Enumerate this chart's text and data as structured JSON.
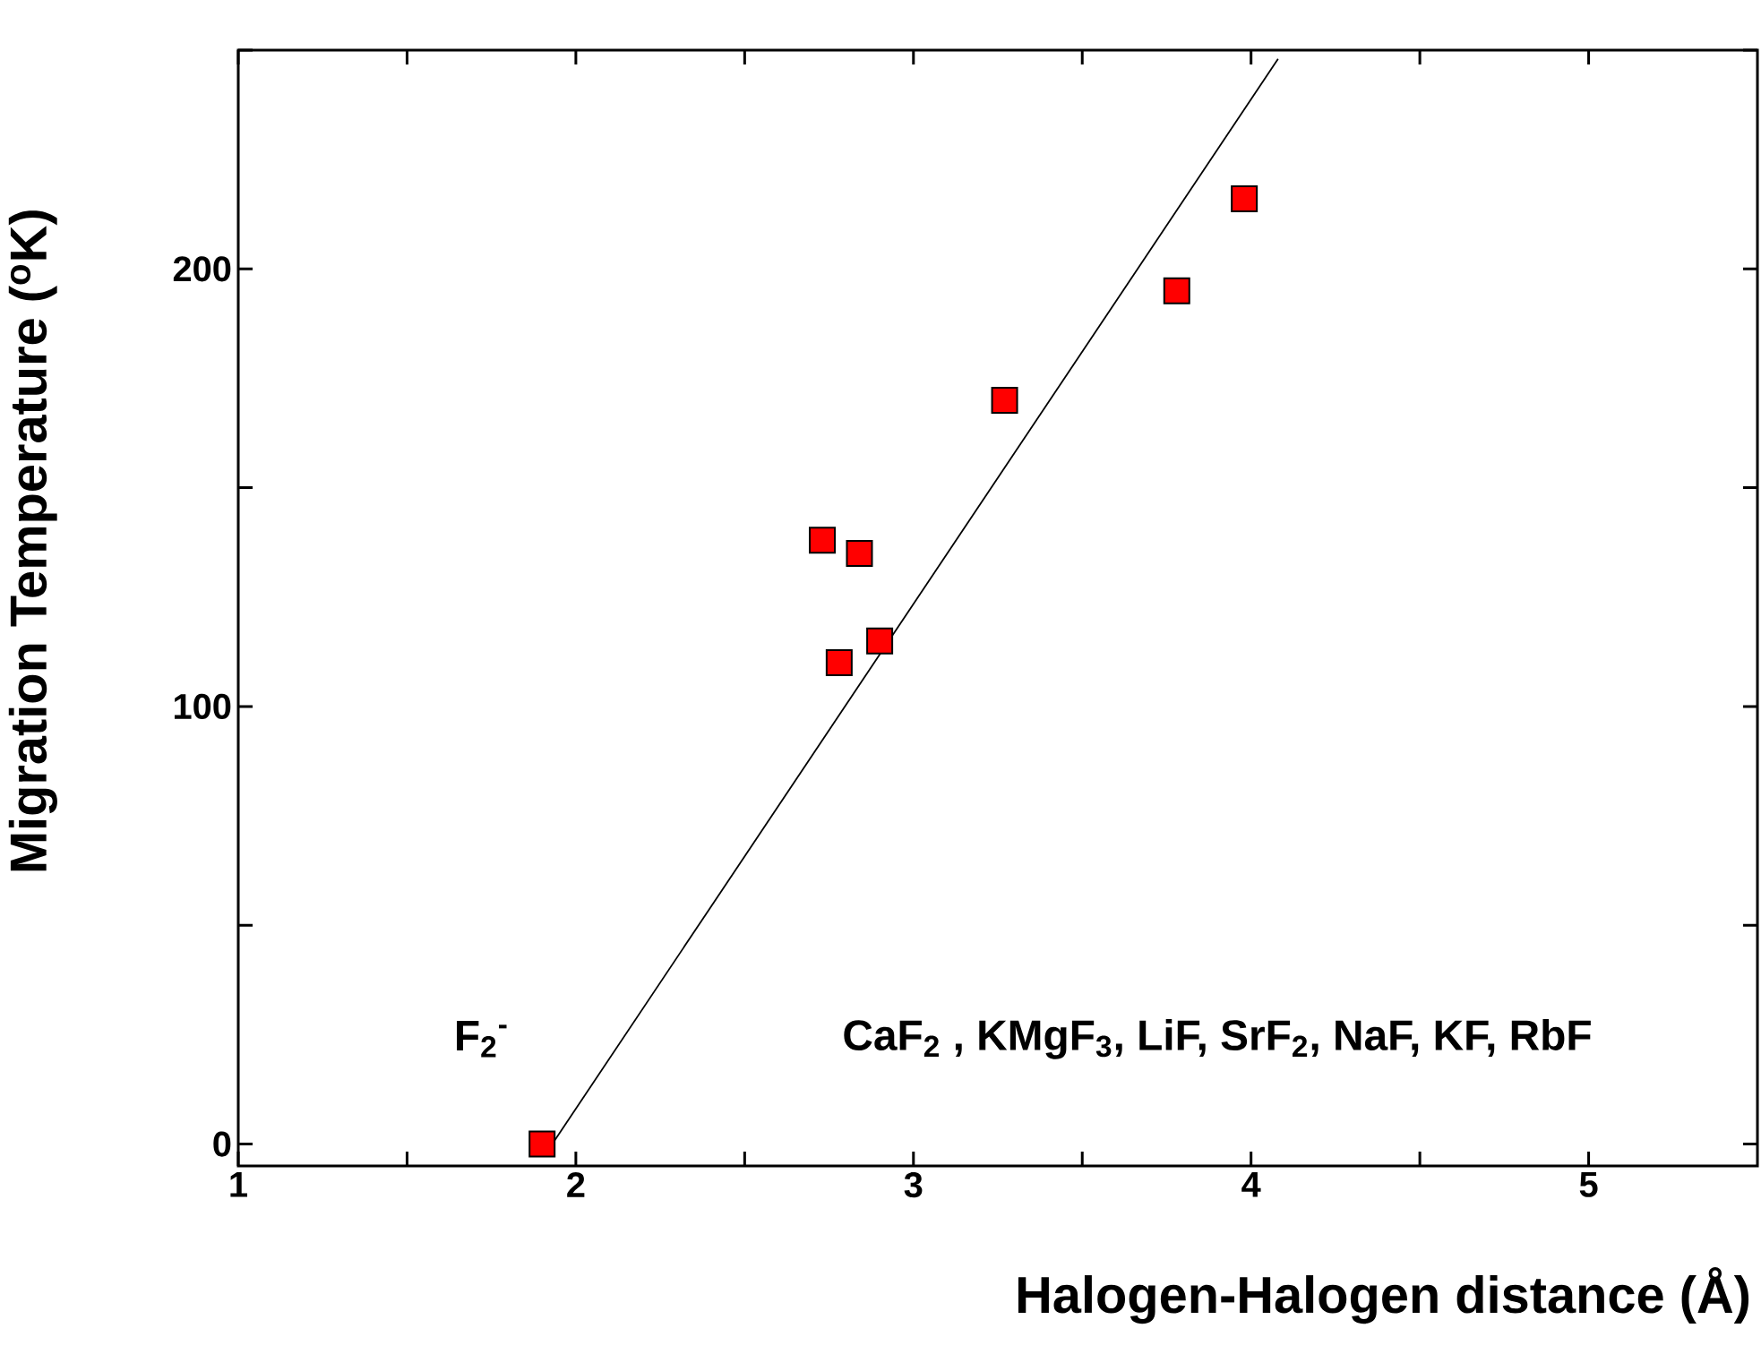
{
  "chart_data": {
    "type": "scatter",
    "xlabel": "Halogen-Halogen distance (Å)",
    "ylabel": "Migration Temperature ($^{o}$K)",
    "xlim": [
      1,
      5.5
    ],
    "ylim": [
      -5,
      250
    ],
    "xticks": [
      1,
      {
        "value": 1.5,
        "label": null
      },
      2,
      {
        "value": 2.5,
        "label": null
      },
      3,
      {
        "value": 3.5,
        "label": null
      },
      4,
      {
        "value": 4.5,
        "label": null
      },
      5
    ],
    "yticks": [
      0,
      {
        "value": 50,
        "label": null
      },
      100,
      {
        "value": 150,
        "label": null
      },
      200,
      {
        "value": 250,
        "label": null
      }
    ],
    "annotations": [
      "F$_{2}$$^{-}$",
      "CaF$_{2}$ , KMgF$_{3}$, LiF, SrF$_{2}$, NaF, KF, RbF"
    ],
    "series": [
      {
        "type": "line",
        "color": "#000000",
        "marker": "none",
        "x": [
          1.93,
          4.08
        ],
        "values": [
          0,
          248
        ]
      },
      {
        "color": "#ff0000",
        "marker": "square",
        "x": [
          1.9,
          2.73,
          2.78,
          2.84,
          2.9,
          3.27,
          3.78,
          3.98
        ],
        "values": [
          0,
          138,
          110,
          135,
          115,
          170,
          195,
          216
        ]
      }
    ]
  }
}
